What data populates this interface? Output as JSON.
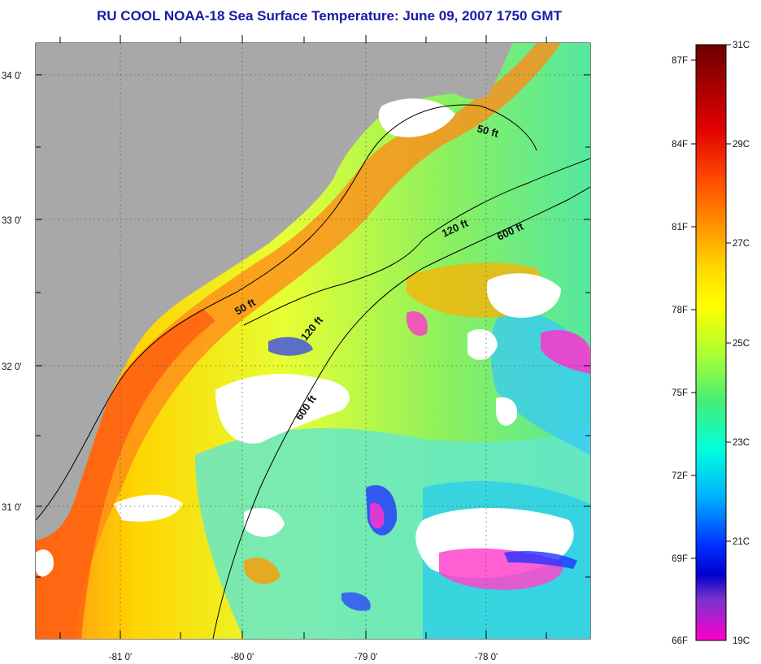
{
  "title": "RU COOL  NOAA-18  Sea Surface Temperature:  June 09, 2007 1750 GMT",
  "map": {
    "lon_labels": [
      "-81 0'",
      "-80 0'",
      "-79 0'",
      "-78 0'"
    ],
    "lat_labels": [
      "34 0'",
      "33 0'",
      "32 0'",
      "31 0'"
    ],
    "contour_labels": {
      "c50_north": "50 ft",
      "c120_north": "120 ft",
      "c600_north": "600 ft",
      "c50_south": "50 ft",
      "c120_south": "120 ft",
      "c600_south": "600 ft"
    },
    "colors": {
      "land": "#a8a8a8",
      "cloud": "#ffffff"
    }
  },
  "colorbar": {
    "fahrenheit": [
      "87F",
      "84F",
      "81F",
      "78F",
      "75F",
      "72F",
      "69F",
      "66F"
    ],
    "celsius": [
      "31C",
      "29C",
      "27C",
      "25C",
      "23C",
      "21C",
      "19C"
    ],
    "stops": [
      "#6a0000",
      "#cc0000",
      "#ff3300",
      "#ff8800",
      "#ffdd00",
      "#ffff00",
      "#ccff22",
      "#55ee66",
      "#00ffdd",
      "#00bbff",
      "#0044ff",
      "#0000dd",
      "#7733cc",
      "#ff00cc"
    ]
  }
}
